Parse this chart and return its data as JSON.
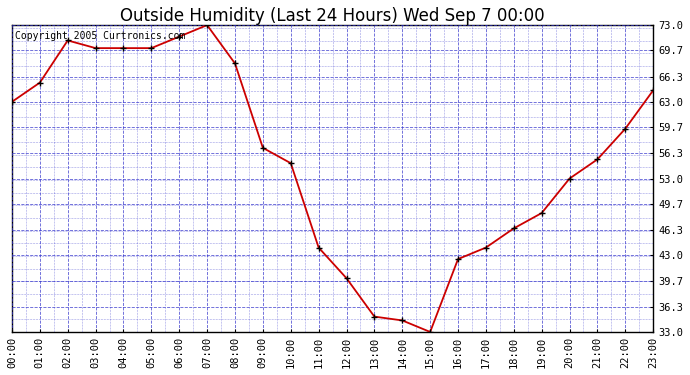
{
  "title": "Outside Humidity (Last 24 Hours) Wed Sep 7 00:00",
  "copyright": "Copyright 2005 Curtronics.com",
  "x_labels": [
    "00:00",
    "01:00",
    "02:00",
    "03:00",
    "04:00",
    "05:00",
    "06:00",
    "07:00",
    "08:00",
    "09:00",
    "10:00",
    "11:00",
    "12:00",
    "13:00",
    "14:00",
    "15:00",
    "16:00",
    "17:00",
    "18:00",
    "19:00",
    "20:00",
    "21:00",
    "22:00",
    "23:00"
  ],
  "x_values": [
    0,
    1,
    2,
    3,
    4,
    5,
    6,
    7,
    8,
    9,
    10,
    11,
    12,
    13,
    14,
    15,
    16,
    17,
    18,
    19,
    20,
    21,
    22,
    23
  ],
  "y_values": [
    63.0,
    65.5,
    71.0,
    70.0,
    70.0,
    70.0,
    71.5,
    73.0,
    68.0,
    57.0,
    55.0,
    44.0,
    40.0,
    35.0,
    34.5,
    33.0,
    42.5,
    44.0,
    46.5,
    48.5,
    53.0,
    55.5,
    59.5,
    64.5
  ],
  "y_ticks": [
    33.0,
    36.3,
    39.7,
    43.0,
    46.3,
    49.7,
    53.0,
    56.3,
    59.7,
    63.0,
    66.3,
    69.7,
    73.0
  ],
  "y_tick_labels": [
    "33.0",
    "36.3",
    "39.7",
    "43.0",
    "46.3",
    "49.7",
    "53.0",
    "56.3",
    "59.7",
    "63.0",
    "66.3",
    "69.7",
    "73.0"
  ],
  "ylim": [
    33.0,
    73.0
  ],
  "xlim": [
    0,
    23
  ],
  "line_color": "#cc0000",
  "marker_color": "#000000",
  "bg_color": "#ffffff",
  "plot_bg_color": "#ffffff",
  "grid_color": "#3333cc",
  "border_color": "#000000",
  "title_fontsize": 12,
  "tick_fontsize": 7.5,
  "copyright_fontsize": 7
}
